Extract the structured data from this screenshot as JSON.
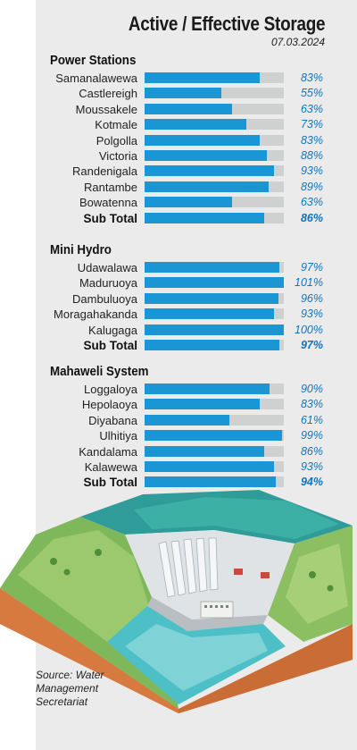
{
  "title": "Active / Effective Storage",
  "date": "07.03.2024",
  "source": "Source: Water Management Secretariat",
  "colors": {
    "bar": "#1a96d4",
    "track": "#cfd0d0",
    "percent_text": "#1473b8",
    "panel": "#ebebeb"
  },
  "chart_data": [
    {
      "type": "bar",
      "title": "Power Stations",
      "categories": [
        "Samanalawewa",
        "Castlereigh",
        "Moussakele",
        "Kotmale",
        "Polgolla",
        "Victoria",
        "Randenigala",
        "Rantambe",
        "Bowatenna"
      ],
      "values": [
        83,
        55,
        63,
        73,
        83,
        88,
        93,
        89,
        63
      ],
      "value_labels": [
        "83%",
        "55%",
        "63%",
        "73%",
        "83%",
        "88%",
        "93%",
        "89%",
        "63%"
      ],
      "subtotal_label": "Sub Total",
      "subtotal_value": 86,
      "subtotal_value_label": "86%"
    },
    {
      "type": "bar",
      "title": "Mini Hydro",
      "categories": [
        "Udawalawa",
        "Maduruoya",
        "Dambuluoya",
        "Moragahakanda",
        "Kalugaga"
      ],
      "values": [
        97,
        101,
        96,
        93,
        100
      ],
      "value_labels": [
        "97%",
        "101%",
        "96%",
        "93%",
        "100%"
      ],
      "subtotal_label": "Sub Total",
      "subtotal_value": 97,
      "subtotal_value_label": "97%"
    },
    {
      "type": "bar",
      "title": "Mahaweli System",
      "categories": [
        "Loggaloya",
        "Hepolaoya",
        "Diyabana",
        "Ulhitiya",
        "Kandalama",
        "Kalawewa"
      ],
      "values": [
        90,
        83,
        61,
        99,
        86,
        93
      ],
      "value_labels": [
        "90%",
        "83%",
        "61%",
        "99%",
        "86%",
        "93%"
      ],
      "subtotal_label": "Sub Total",
      "subtotal_value": 94,
      "subtotal_value_label": "94%"
    }
  ]
}
